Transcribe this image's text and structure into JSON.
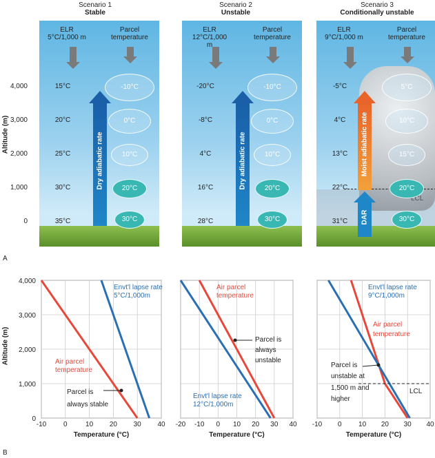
{
  "part_a": {
    "letter": "A",
    "y_axis_label": "Altitude (m)",
    "y_ticks": [
      "4,000",
      "3,000",
      "2,000",
      "1,000",
      "0"
    ],
    "scenarios": [
      {
        "title": "Scenario 1",
        "subtitle": "Stable",
        "elr_label": "ELR",
        "elr_rate": "5°C/1,000 m",
        "parcel_label": "Parcel temperature",
        "env_temps": [
          "15°C",
          "20°C",
          "25°C",
          "30°C",
          "35°C"
        ],
        "parcels": [
          "-10°C",
          "0°C",
          "10°C",
          "20°C",
          "30°C"
        ],
        "arrow_label": "Dry adiabatic rate"
      },
      {
        "title": "Scenario 2",
        "subtitle": "Unstable",
        "elr_label": "ELR",
        "elr_rate": "12°C/1,000 m",
        "parcel_label": "Parcel temperature",
        "env_temps": [
          "-20°C",
          "-8°C",
          "4°C",
          "16°C",
          "28°C"
        ],
        "parcels": [
          "-10°C",
          "0°C",
          "10°C",
          "20°C",
          "30°C"
        ],
        "arrow_label": "Dry adiabatic rate"
      },
      {
        "title": "Scenario 3",
        "subtitle": "Conditionally unstable",
        "elr_label": "ELR",
        "elr_rate": "9°C/1,000 m",
        "parcel_label": "Parcel temperature",
        "env_temps": [
          "-5°C",
          "4°C",
          "13°C",
          "22°C",
          "31°C"
        ],
        "parcels": [
          "5°C",
          "10°C",
          "15°C",
          "20°C",
          "30°C"
        ],
        "arrow_label": "Moist adiabatic rate",
        "arrow_label_low": "DAR",
        "lcl": "LCL"
      }
    ]
  },
  "part_b": {
    "letter": "B",
    "y_axis_label": "Altitude (m)",
    "x_axis_label": "Temperature (°C)",
    "y_ticks": [
      "4,000",
      "3,000",
      "2,000",
      "1,000",
      "0"
    ],
    "colors": {
      "air": "#e8473a",
      "env": "#2a6fb3"
    },
    "charts": [
      {
        "x_ticks": [
          "-10",
          "0",
          "10",
          "20",
          "30",
          "40"
        ],
        "env_label": [
          "Envt'l lapse rate",
          "5°C/1,000m"
        ],
        "air_label": [
          "Air parcel",
          "temperature"
        ],
        "note": [
          "Parcel is",
          "always stable"
        ]
      },
      {
        "x_ticks": [
          "-20",
          "-10",
          "0",
          "10",
          "20",
          "30",
          "40"
        ],
        "env_label": [
          "Envt'l lapse rate",
          "12°C/1,000m"
        ],
        "air_label": [
          "Air parcel",
          "temperature"
        ],
        "note": [
          "Parcel is",
          "always",
          "unstable"
        ]
      },
      {
        "x_ticks": [
          "-10",
          "0",
          "10",
          "20",
          "30",
          "40"
        ],
        "env_label": [
          "Envt'l lapse rate",
          "9°C/1,000m"
        ],
        "air_label": [
          "Air parcel",
          "temperature"
        ],
        "note": [
          "Parcel is",
          "unstable at",
          "1,500 m and",
          "higher"
        ],
        "lcl": "LCL"
      }
    ]
  },
  "chart_data": [
    {
      "type": "line",
      "x": [
        30,
        -10
      ],
      "y": [
        0,
        4000
      ],
      "series": [
        {
          "name": "Air parcel temperature",
          "x": [
            30,
            -10
          ],
          "y": [
            0,
            4000
          ]
        },
        {
          "name": "Envt'l lapse rate 5°C/1,000m",
          "x": [
            35,
            15
          ],
          "y": [
            0,
            4000
          ]
        }
      ],
      "xlim": [
        -10,
        40
      ],
      "ylim": [
        0,
        4000
      ]
    },
    {
      "type": "line",
      "series": [
        {
          "name": "Air parcel temperature",
          "x": [
            30,
            -10
          ],
          "y": [
            0,
            4000
          ]
        },
        {
          "name": "Envt'l lapse rate 12°C/1,000m",
          "x": [
            28,
            -20
          ],
          "y": [
            0,
            4000
          ]
        }
      ],
      "xlim": [
        -20,
        40
      ],
      "ylim": [
        0,
        4000
      ]
    },
    {
      "type": "line",
      "series": [
        {
          "name": "Air parcel temperature",
          "x": [
            30,
            20,
            5
          ],
          "y": [
            0,
            1000,
            4000
          ]
        },
        {
          "name": "Envt'l lapse rate 9°C/1,000m",
          "x": [
            31,
            -5
          ],
          "y": [
            0,
            4000
          ]
        }
      ],
      "xlim": [
        -10,
        40
      ],
      "ylim": [
        0,
        4000
      ]
    }
  ]
}
